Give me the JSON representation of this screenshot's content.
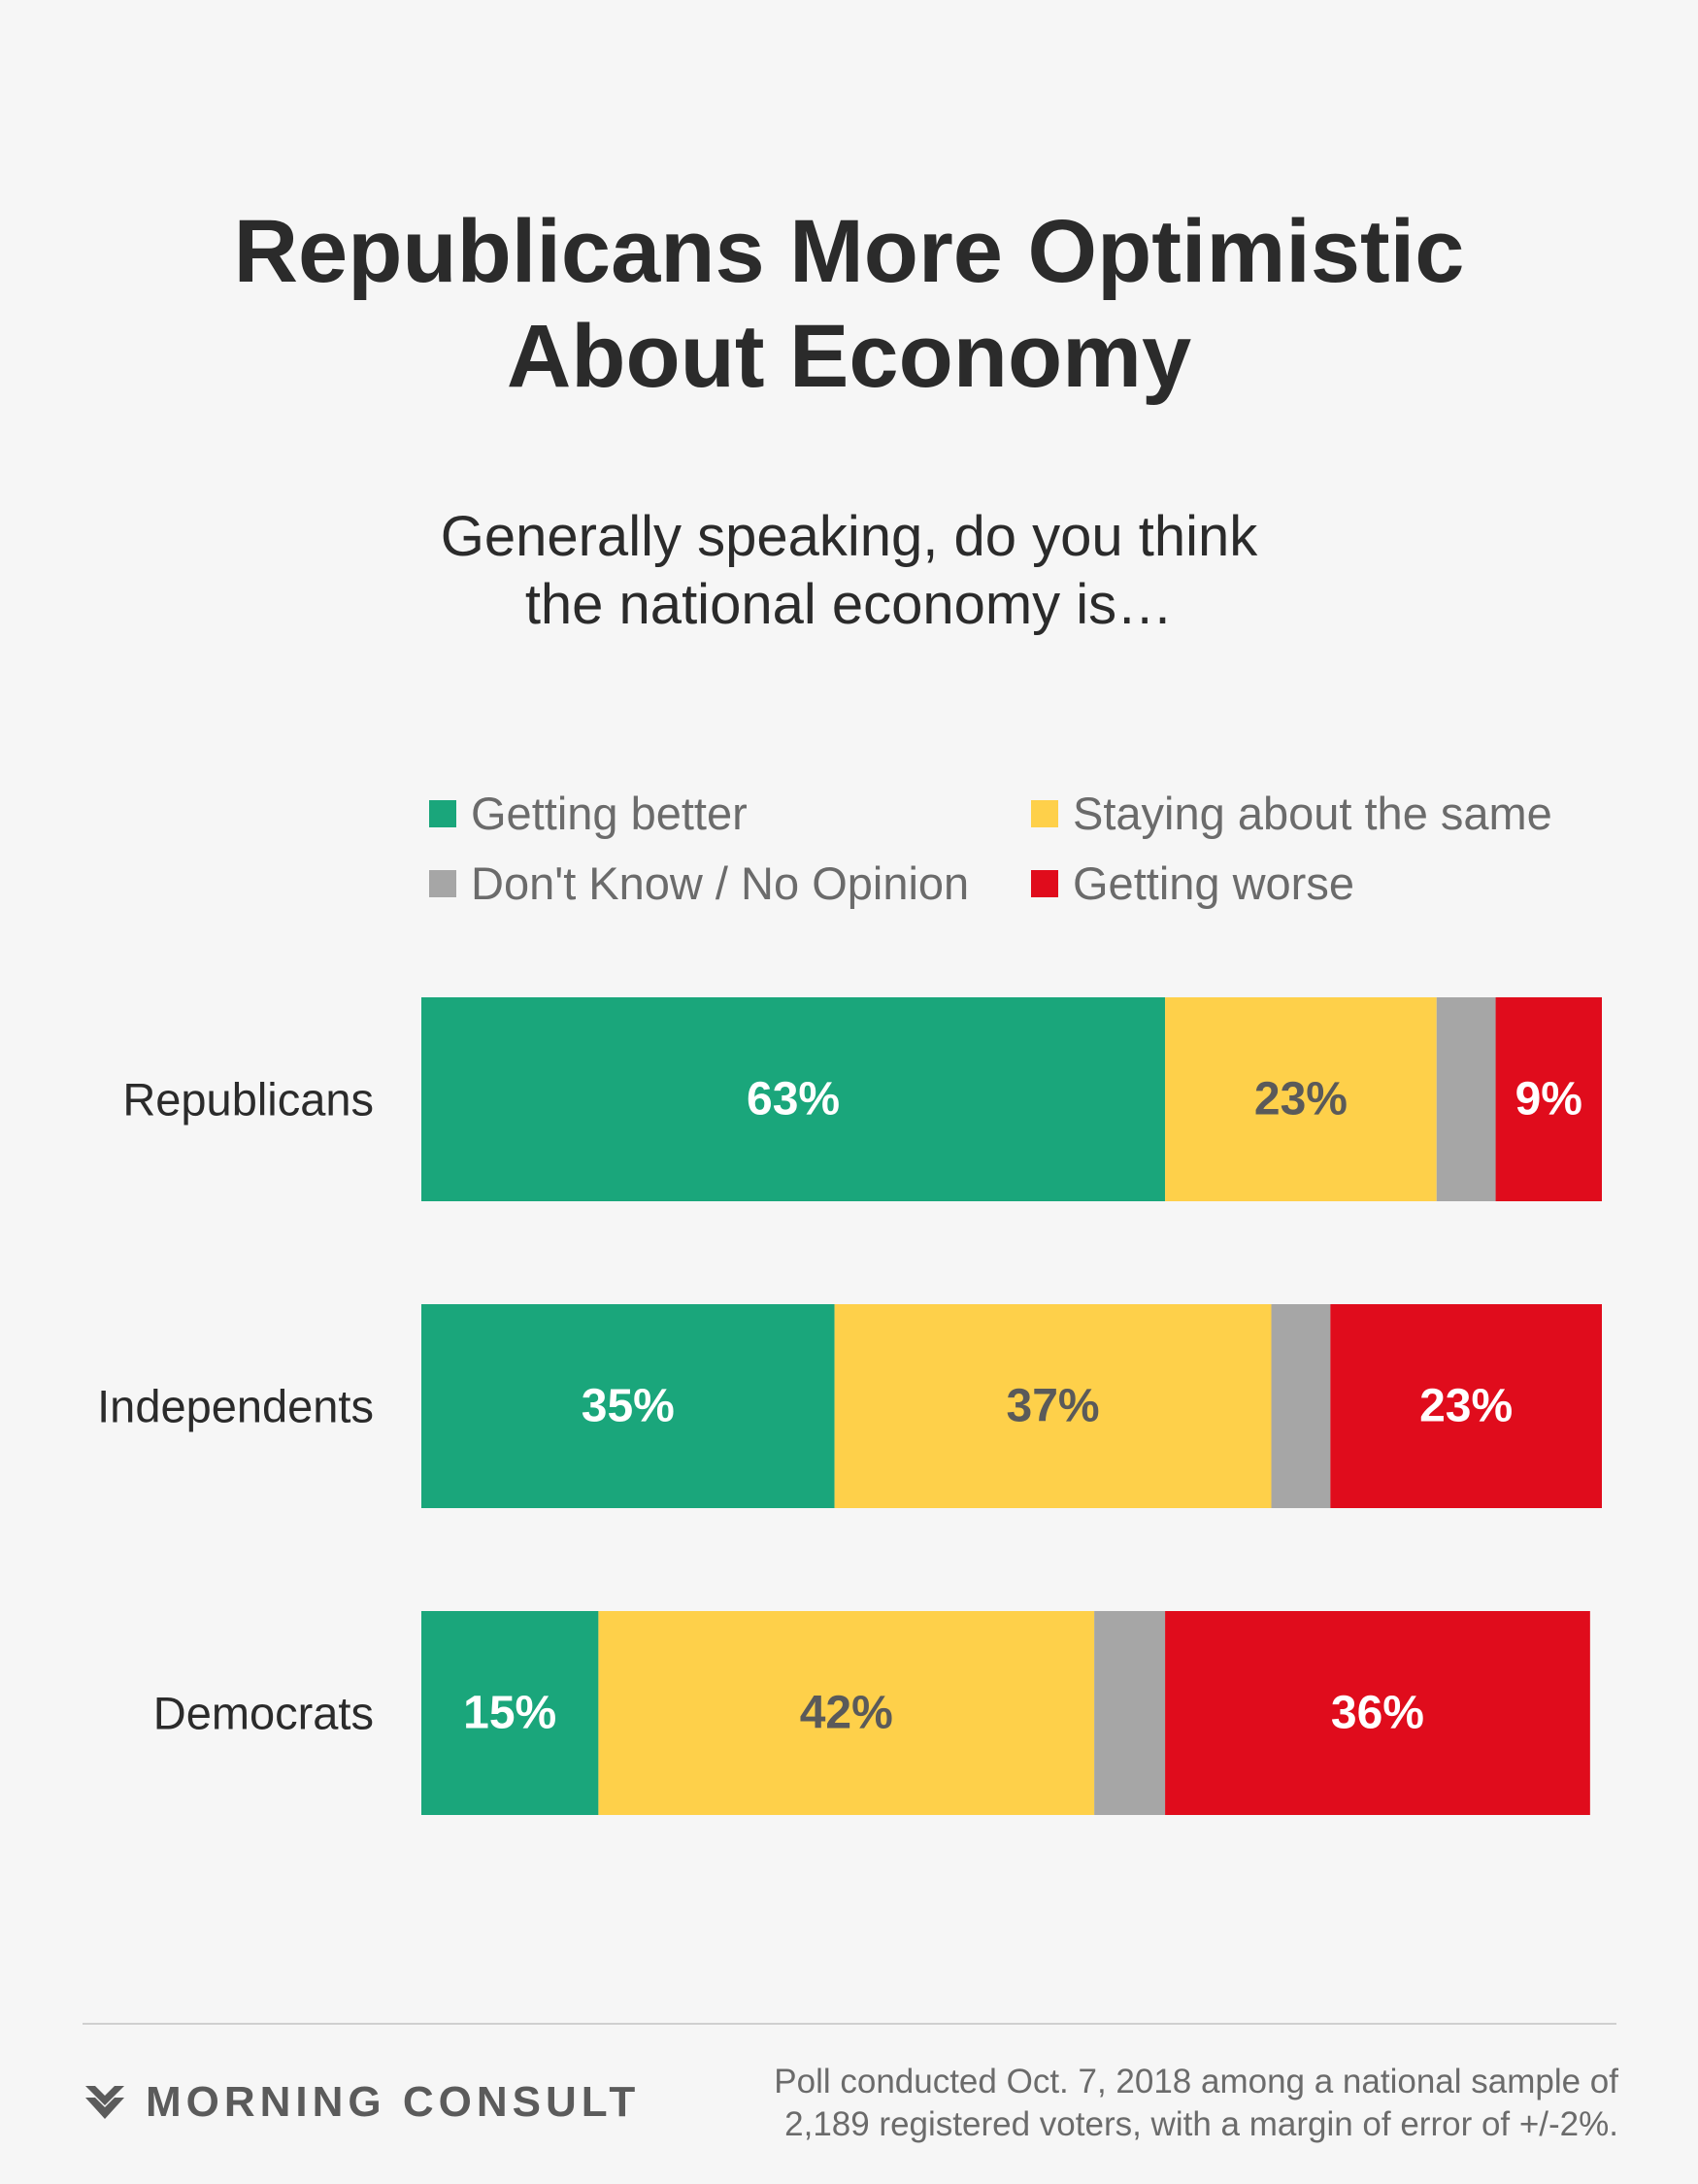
{
  "header": {
    "title_line1": "Republicans More Optimistic",
    "title_line2": "About Economy",
    "question_line1": "Generally speaking, do you think",
    "question_line2": "the national economy is…"
  },
  "colors": {
    "getting_better": "#1aa67b",
    "staying_same": "#fed04a",
    "dont_know": "#a6a6a6",
    "getting_worse": "#e00c1c",
    "label_light": "#ffffff",
    "label_dark": "#5a5a5a"
  },
  "legend": [
    {
      "label": "Getting better",
      "color": "#1aa67b"
    },
    {
      "label": "Staying about the same",
      "color": "#fed04a"
    },
    {
      "label": "Don't Know / No Opinion",
      "color": "#a6a6a6"
    },
    {
      "label": "Getting worse",
      "color": "#e00c1c"
    }
  ],
  "chart_data": {
    "type": "bar",
    "orientation": "horizontal",
    "stacked": true,
    "title": "Republicans More Optimistic About Economy",
    "subtitle": "Generally speaking, do you think the national economy is…",
    "categories": [
      "Republicans",
      "Independents",
      "Democrats"
    ],
    "series": [
      {
        "name": "Getting better",
        "color": "#1aa67b",
        "label_color": "#ffffff",
        "values": [
          63,
          35,
          15
        ],
        "labels": [
          "63%",
          "35%",
          "15%"
        ]
      },
      {
        "name": "Staying about the same",
        "color": "#fed04a",
        "label_color": "#5a5a5a",
        "values": [
          23,
          37,
          42
        ],
        "labels": [
          "23%",
          "37%",
          "42%"
        ]
      },
      {
        "name": "Don't Know / No Opinion",
        "color": "#a6a6a6",
        "label_color": "#ffffff",
        "values": [
          5,
          5,
          6
        ],
        "labels": [
          "",
          "",
          ""
        ]
      },
      {
        "name": "Getting worse",
        "color": "#e00c1c",
        "label_color": "#ffffff",
        "values": [
          9,
          23,
          36
        ],
        "labels": [
          "9%",
          "23%",
          "36%"
        ]
      }
    ],
    "xlim": [
      0,
      100
    ],
    "grid": false,
    "legend_position": "top"
  },
  "footer": {
    "brand": "MORNING CONSULT",
    "note_line1": "Poll conducted Oct. 7, 2018 among a national sample of",
    "note_line2": "2,189 registered voters, with a margin of error of +/-2%."
  }
}
